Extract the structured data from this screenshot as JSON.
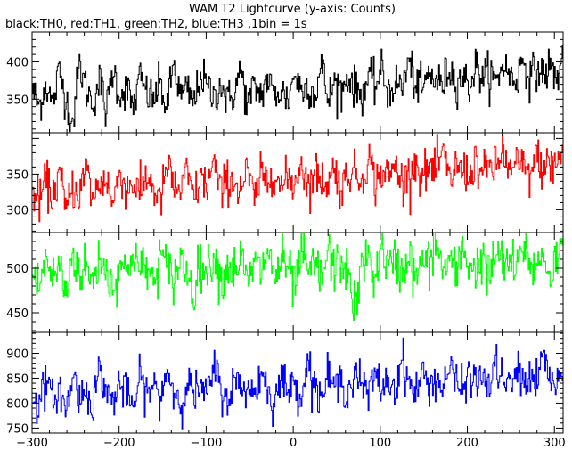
{
  "title": "WAM T2 Lightcurve (y-axis: Counts)",
  "subtitle": "black:TH0, red:TH1, green:TH2, blue:TH3 ,1bin = 1s",
  "chart_data": {
    "type": "line",
    "x_range": [
      -300,
      310
    ],
    "x_ticks": [
      -300,
      -200,
      -100,
      0,
      100,
      200,
      300
    ],
    "x_tick_labels": [
      "−300",
      "−200",
      "−100",
      "0",
      "100",
      "200",
      "300"
    ],
    "grid": false,
    "panels": [
      {
        "series": "TH0",
        "color": "#000000",
        "ylim": [
          305,
          440
        ],
        "y_ticks": [
          350,
          400
        ],
        "y_tick_labels": [
          "350",
          "400"
        ],
        "mean_start": 355,
        "mean_end": 385,
        "noise_sd": 18,
        "raw_values": [
          361,
          340,
          371,
          342,
          388,
          350,
          318,
          397,
          363,
          345,
          376,
          332,
          392,
          355,
          365,
          338,
          380,
          358,
          349,
          371,
          336,
          399,
          354,
          362,
          344,
          383,
          366,
          351,
          373,
          346,
          359,
          390,
          341,
          367,
          356,
          378,
          352,
          364,
          347,
          386,
          361,
          370,
          355,
          395,
          349,
          375,
          360,
          382,
          364,
          357,
          379,
          368,
          388,
          359,
          372,
          366,
          401,
          370,
          362,
          384,
          376,
          369,
          392,
          373,
          381,
          367,
          396,
          378,
          386,
          371,
          399,
          382,
          375,
          405,
          379,
          389,
          384,
          393,
          377,
          410
        ]
      },
      {
        "series": "TH1",
        "color": "#ff0000",
        "ylim": [
          268,
          408
        ],
        "y_ticks": [
          300,
          350
        ],
        "y_tick_labels": [
          "300",
          "350"
        ],
        "mean_start": 325,
        "mean_end": 350,
        "noise_sd": 20,
        "raw_values": [
          329,
          310,
          341,
          318,
          352,
          297,
          334,
          322,
          360,
          315,
          337,
          345,
          305,
          356,
          328,
          339,
          320,
          348,
          331,
          309,
          362,
          333,
          326,
          351,
          317,
          342,
          335,
          367,
          321,
          344,
          338,
          330,
          355,
          313,
          347,
          340,
          359,
          328,
          346,
          336,
          370,
          331,
          352,
          343,
          338,
          361,
          324,
          356,
          349,
          341,
          377,
          336,
          354,
          347,
          362,
          339,
          350,
          368,
          345,
          358,
          352,
          381,
          342,
          360,
          355,
          349,
          371,
          346,
          364,
          357,
          385,
          350,
          363,
          359,
          348,
          374,
          356,
          366,
          361,
          389
        ]
      },
      {
        "series": "TH2",
        "color": "#00ff00",
        "ylim": [
          428,
          540
        ],
        "y_ticks": [
          450,
          500
        ],
        "y_tick_labels": [
          "450",
          "500"
        ],
        "mean_start": 493,
        "mean_end": 503,
        "noise_sd": 18,
        "raw_values": [
          496,
          478,
          512,
          487,
          505,
          470,
          520,
          492,
          501,
          483,
          515,
          497,
          476,
          509,
          490,
          524,
          494,
          503,
          481,
          517,
          499,
          488,
          511,
          496,
          473,
          507,
          493,
          519,
          485,
          502,
          498,
          514,
          480,
          506,
          495,
          522,
          489,
          508,
          500,
          477,
          516,
          494,
          504,
          486,
          521,
          497,
          510,
          492,
          453,
          501,
          513,
          488,
          526,
          499,
          507,
          495,
          518,
          484,
          509,
          502,
          531,
          496,
          511,
          491,
          523,
          505,
          498,
          515,
          487,
          520,
          503,
          509,
          494,
          528,
          506,
          500,
          517,
          492,
          512,
          524
        ]
      },
      {
        "series": "TH3",
        "color": "#0000ff",
        "ylim": [
          740,
          942
        ],
        "y_ticks": [
          750,
          800,
          850,
          900
        ],
        "y_tick_labels": [
          "750",
          "800",
          "850",
          "900"
        ],
        "mean_start": 820,
        "mean_end": 845,
        "noise_sd": 26,
        "raw_values": [
          818,
          794,
          845,
          806,
          832,
          780,
          858,
          812,
          826,
          799,
          871,
          824,
          803,
          840,
          815,
          790,
          852,
          821,
          834,
          808,
          866,
          827,
          797,
          843,
          818,
          831,
          811,
          875,
          829,
          805,
          848,
          823,
          838,
          816,
          862,
          830,
          801,
          851,
          826,
          839,
          819,
          884,
          833,
          812,
          855,
          829,
          844,
          822,
          868,
          836,
          815,
          857,
          831,
          846,
          826,
          893,
          840,
          819,
          861,
          835,
          850,
          829,
          873,
          842,
          824,
          864,
          838,
          852,
          833,
          880,
          845,
          828,
          867,
          841,
          856,
          836,
          899,
          848,
          832,
          870
        ]
      }
    ]
  }
}
